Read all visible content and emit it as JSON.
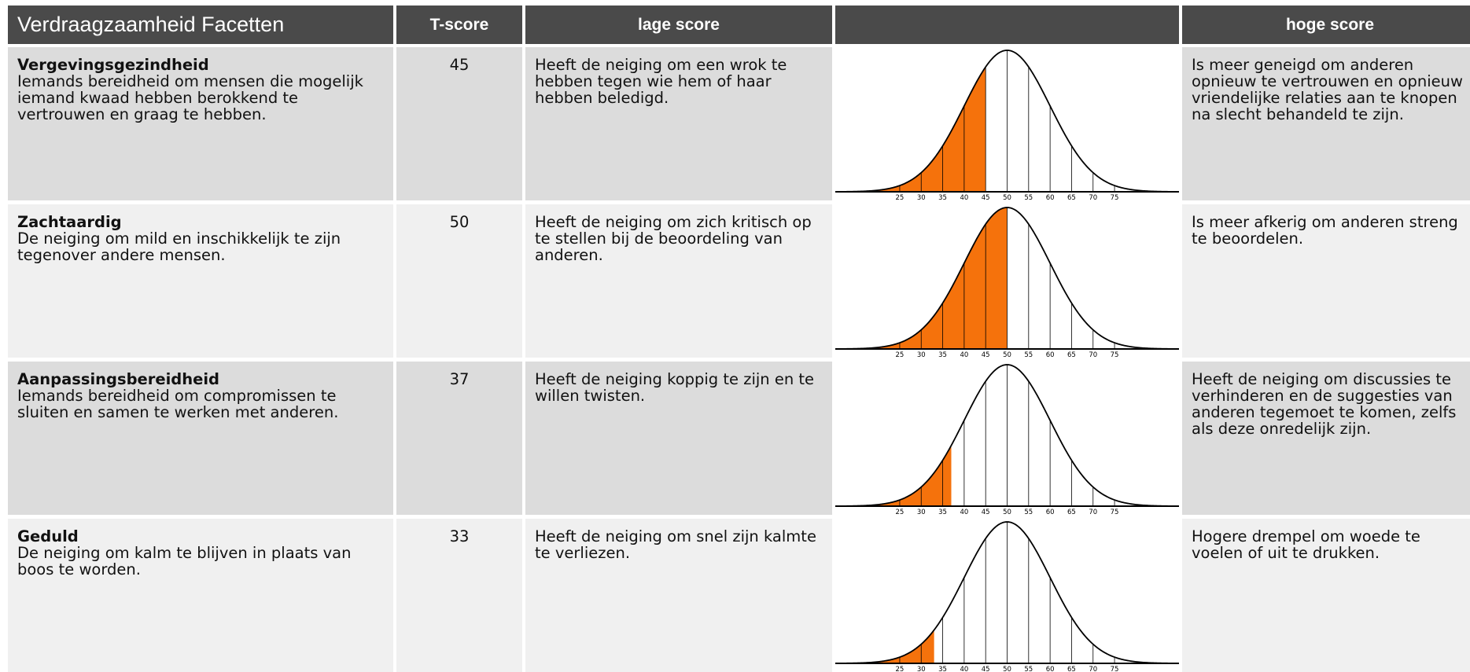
{
  "table": {
    "headers": {
      "facet": "Verdraagzaamheid Facetten",
      "tscore": "T-score",
      "low": "lage score",
      "chart": "",
      "high": "hoge score"
    },
    "rows": [
      {
        "name": "Vergevingsgezindheid",
        "description": "Iemands bereidheid om mensen die mogelijk iemand kwaad hebben berokkend te vertrouwen en graag te hebben.",
        "tscore": "45",
        "low": "Heeft de neiging om een wrok te hebben tegen wie hem of haar hebben beledigd.",
        "high": "Is meer geneigd om anderen opnieuw te vertrouwen en opnieuw vriendelijke relaties aan te knopen na slecht behandeld te zijn."
      },
      {
        "name": "Zachtaardig",
        "description": "De neiging om mild en inschikkelijk te zijn tegenover andere mensen.",
        "tscore": "50",
        "low": "Heeft de neiging om zich kritisch op te stellen bij de beoordeling van anderen.",
        "high": "Is meer afkerig om anderen streng te beoordelen."
      },
      {
        "name": "Aanpassingsbereidheid",
        "description": "Iemands bereidheid om compromissen te sluiten en samen te werken met anderen.",
        "tscore": "37",
        "low": "Heeft de neiging koppig te zijn en te willen twisten.",
        "high": "Heeft de neiging om discussies te verhinderen en de suggesties van anderen tegemoet te komen, zelfs als deze onredelijk zijn."
      },
      {
        "name": "Geduld",
        "description": "De neiging om kalm te blijven in plaats van boos te worden.",
        "tscore": "33",
        "low": "Heeft de neiging om snel zijn kalmte te verliezen.",
        "high": "Hogere drempel om woede te voelen of uit te drukken."
      }
    ]
  },
  "chart_data": {
    "type": "area",
    "distribution": "normal",
    "mean": 50,
    "sd": 10,
    "x_ticks": [
      25,
      30,
      35,
      40,
      45,
      50,
      55,
      60,
      65,
      70,
      75
    ],
    "xlim": [
      10,
      90
    ],
    "fill_color": "#f5720c",
    "line_color": "#000000",
    "highlights": [
      45,
      50,
      37,
      33
    ]
  },
  "colors": {
    "header_bg": "#4a4a4a",
    "row_odd": "#dcdcdc",
    "row_even": "#f0f0f0",
    "accent": "#f5720c"
  }
}
